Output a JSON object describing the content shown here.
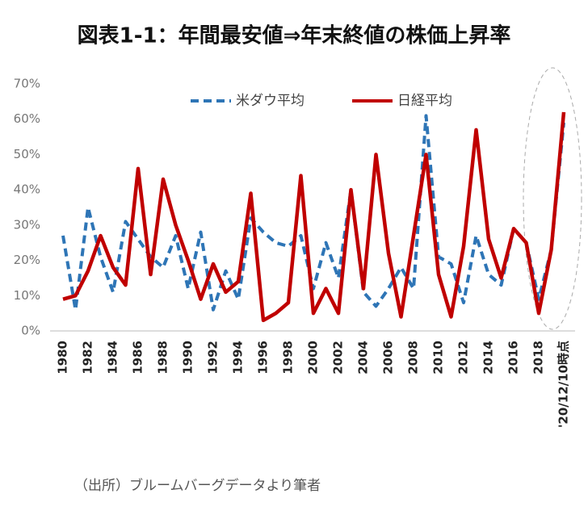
{
  "chart_data": {
    "type": "line",
    "title": "図表1-1：年間最安値⇒年末終値の株価上昇率",
    "footnote": "（出所）ブルームバーグデータより筆者",
    "categories": [
      "1980",
      null,
      "1982",
      null,
      "1984",
      null,
      "1986",
      null,
      "1988",
      null,
      "1990",
      null,
      "1992",
      null,
      "1994",
      null,
      "1996",
      null,
      "1998",
      null,
      "2000",
      null,
      "2002",
      null,
      "2004",
      null,
      "2006",
      null,
      "2008",
      null,
      "2010",
      null,
      "2012",
      null,
      "2014",
      null,
      "2016",
      null,
      "2018",
      null,
      "'20/12/10時点"
    ],
    "series": [
      {
        "name": "米ダウ平均",
        "color": "#2e75b6",
        "dashed": true,
        "values": [
          27,
          6,
          35,
          21,
          11,
          31,
          26,
          21,
          18,
          27,
          12,
          28,
          6,
          17,
          9,
          32,
          28,
          25,
          24,
          27,
          12,
          25,
          15,
          40,
          11,
          7,
          12,
          18,
          12,
          61,
          21,
          19,
          8,
          27,
          16,
          13,
          29,
          25,
          9,
          23,
          59
        ]
      },
      {
        "name": "日経平均",
        "color": "#c00000",
        "dashed": false,
        "values": [
          9,
          10,
          17,
          27,
          18,
          13,
          46,
          16,
          43,
          30,
          20,
          9,
          19,
          11,
          14,
          39,
          3,
          5,
          8,
          44,
          5,
          12,
          5,
          40,
          12,
          50,
          22,
          4,
          27,
          50,
          16,
          4,
          24,
          57,
          26,
          15,
          29,
          25,
          5,
          23,
          62
        ]
      }
    ],
    "ylim": [
      0,
      70
    ],
    "yticks": [
      {
        "value": 0,
        "label": "0%"
      },
      {
        "value": 10,
        "label": "10%"
      },
      {
        "value": 20,
        "label": "20%"
      },
      {
        "value": 30,
        "label": "30%"
      },
      {
        "value": 40,
        "label": "40%"
      },
      {
        "value": 50,
        "label": "50%"
      },
      {
        "value": 60,
        "label": "60%"
      },
      {
        "value": 70,
        "label": "70%"
      }
    ],
    "grid": false
  }
}
